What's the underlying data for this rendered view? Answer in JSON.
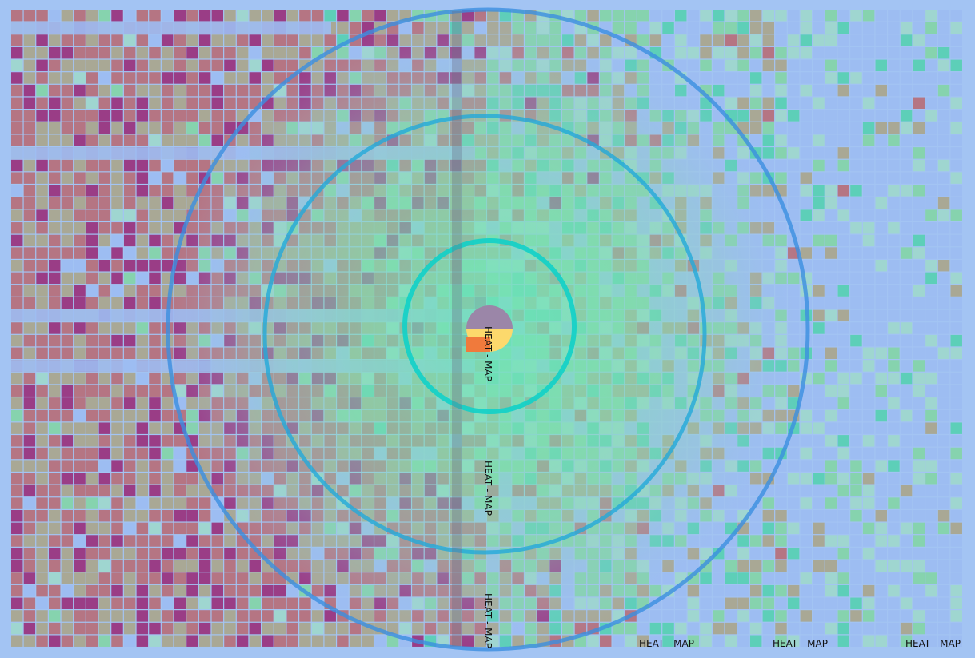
{
  "chart_data": {
    "type": "heatmap",
    "title": "",
    "xlabel": "",
    "ylabel": "",
    "grid": true,
    "background_color": "#a3c4f3",
    "palette": [
      "#9a3d86",
      "#b57583",
      "#a9a895",
      "#86d3ae",
      "#5dcfb8",
      "#9fd6d0",
      "#9dbdf2"
    ],
    "labels": {
      "bottom": [
        "HEAT - MAP",
        "HEAT - MAP",
        "HEAT - MAP"
      ],
      "vertical": [
        "HEAT - MAP",
        "HEAT - MAP",
        "HEAT - MAP"
      ]
    },
    "rings": [
      {
        "name": "outer-ring",
        "color": "#3b8fe0"
      },
      {
        "name": "middle-ring",
        "color": "#23a9da"
      },
      {
        "name": "inner-ring",
        "color": "#11d0c8"
      }
    ],
    "center_marker": {
      "colors": [
        "#9b86a8",
        "#fcd96c",
        "#f07a3c"
      ]
    }
  }
}
